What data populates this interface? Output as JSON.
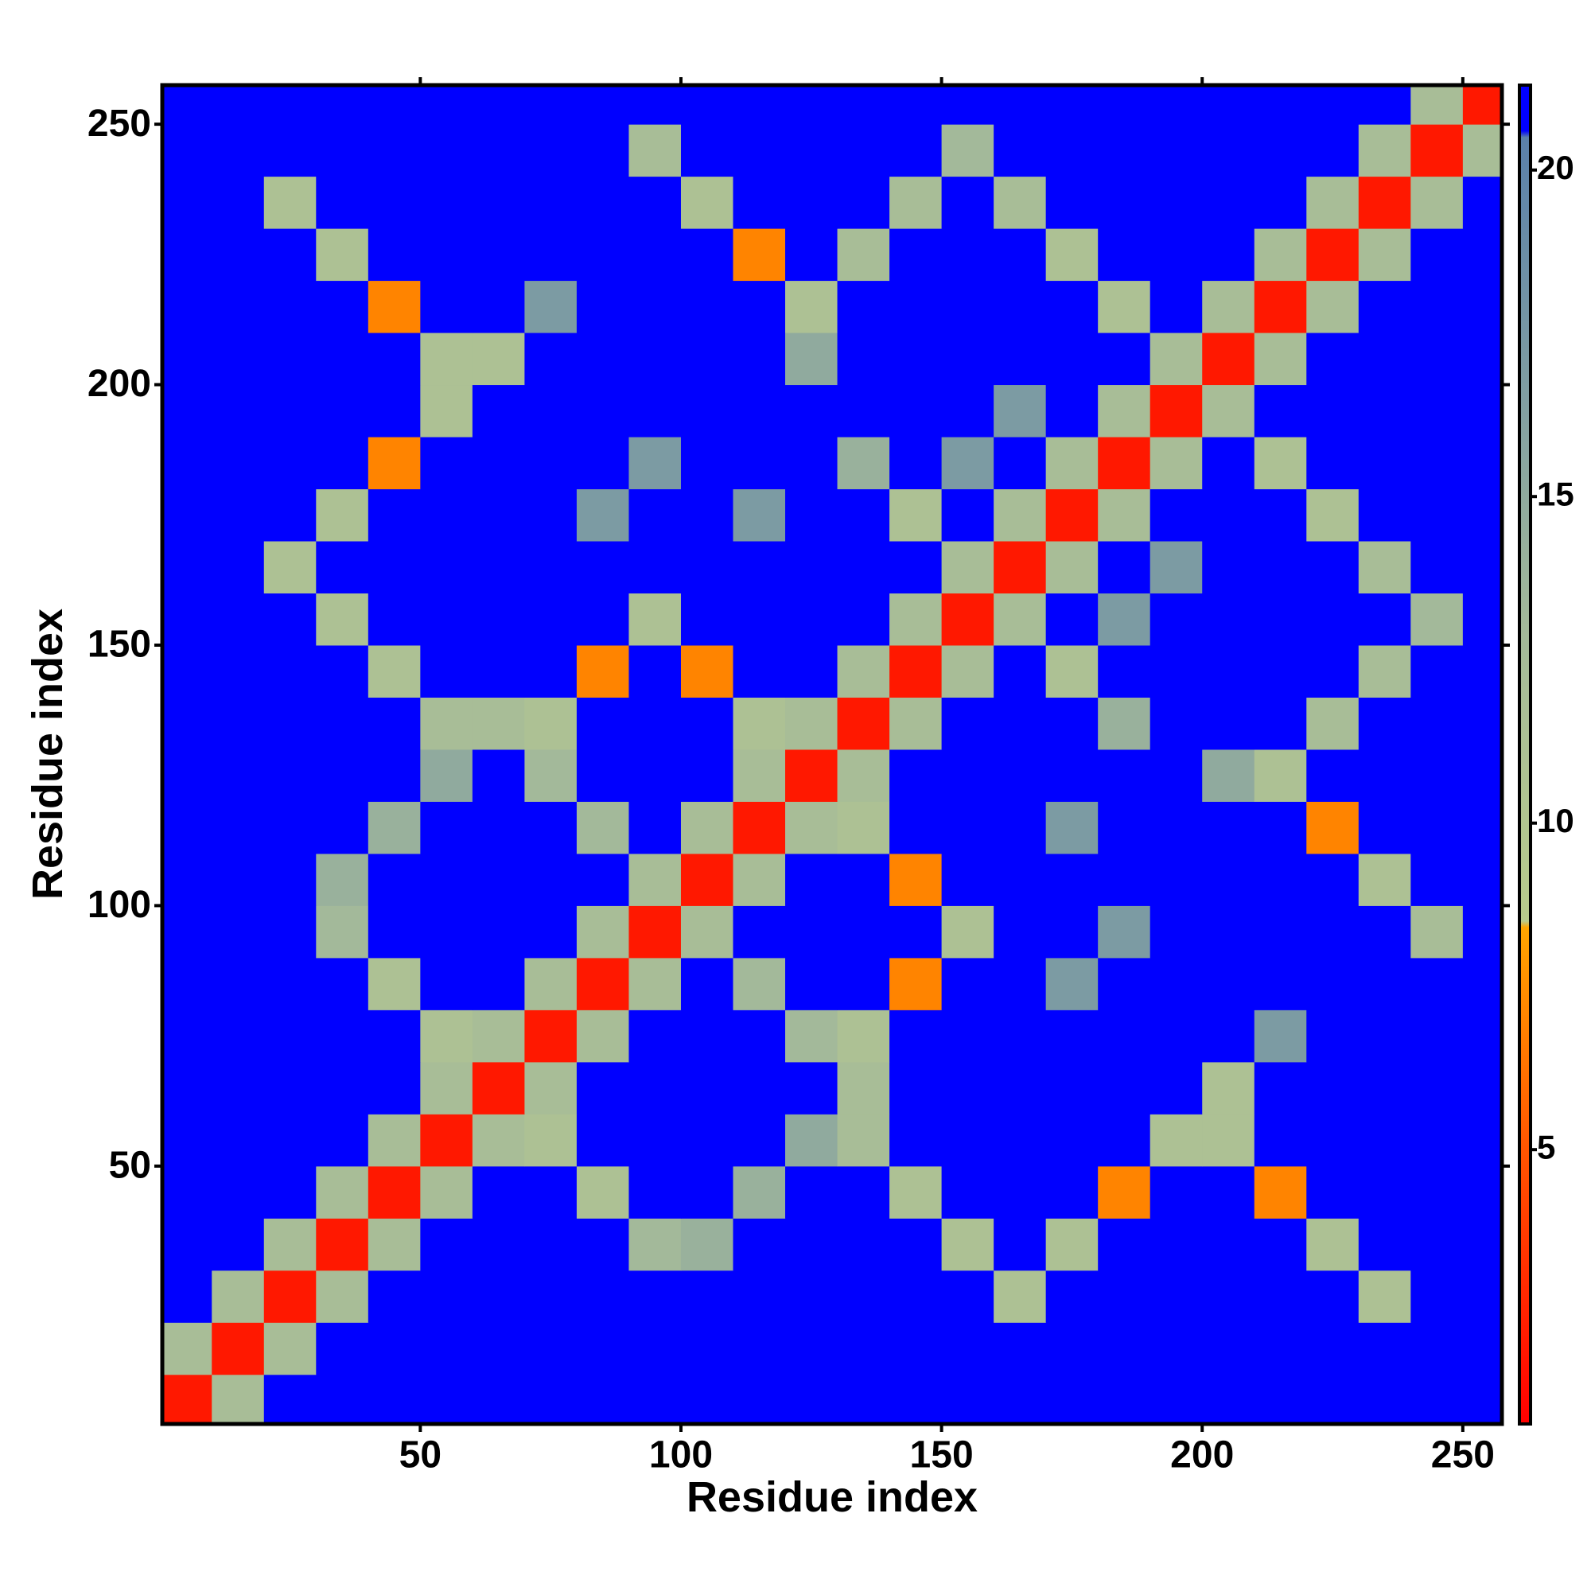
{
  "chart_data": {
    "type": "heatmap",
    "x_label": "Residue index",
    "y_label": "Residue index",
    "x": [
      5,
      15,
      25,
      35,
      45,
      55,
      65,
      75,
      85,
      95,
      105,
      115,
      125,
      135,
      145,
      155,
      165,
      175,
      185,
      195,
      205,
      215,
      225,
      235,
      245,
      255
    ],
    "y": [
      5,
      15,
      25,
      35,
      45,
      55,
      65,
      75,
      85,
      95,
      105,
      115,
      125,
      135,
      145,
      155,
      165,
      175,
      185,
      195,
      205,
      215,
      225,
      235,
      245,
      255
    ],
    "values": [
      [
        2,
        12,
        21,
        21,
        21,
        21,
        21,
        21,
        21,
        21,
        21,
        21,
        21,
        21,
        21,
        21,
        21,
        21,
        21,
        21,
        21,
        21,
        21,
        21,
        21,
        21
      ],
      [
        12,
        2,
        12,
        21,
        21,
        21,
        21,
        21,
        21,
        21,
        21,
        21,
        21,
        21,
        21,
        21,
        21,
        21,
        21,
        21,
        21,
        21,
        21,
        21,
        21,
        21
      ],
      [
        21,
        12,
        2,
        12,
        21,
        21,
        21,
        21,
        21,
        21,
        21,
        21,
        21,
        21,
        21,
        21,
        11,
        21,
        21,
        21,
        21,
        21,
        21,
        11,
        21,
        21
      ],
      [
        21,
        21,
        12,
        2,
        12,
        21,
        21,
        21,
        21,
        13,
        14,
        21,
        21,
        21,
        21,
        11,
        21,
        11,
        21,
        21,
        21,
        21,
        11,
        21,
        21,
        21
      ],
      [
        21,
        21,
        21,
        12,
        2,
        12,
        21,
        21,
        11,
        21,
        21,
        14,
        21,
        21,
        11,
        21,
        21,
        21,
        7,
        21,
        21,
        7,
        21,
        21,
        21,
        21
      ],
      [
        21,
        21,
        21,
        21,
        12,
        2,
        12,
        11,
        21,
        21,
        21,
        21,
        15,
        12,
        21,
        21,
        21,
        21,
        21,
        11,
        11,
        21,
        21,
        21,
        21,
        21
      ],
      [
        21,
        21,
        21,
        21,
        21,
        12,
        2,
        12,
        21,
        21,
        21,
        21,
        21,
        12,
        21,
        21,
        21,
        21,
        21,
        21,
        11,
        21,
        21,
        21,
        21,
        21
      ],
      [
        21,
        21,
        21,
        21,
        21,
        11,
        12,
        2,
        12,
        21,
        21,
        21,
        13,
        11,
        21,
        21,
        21,
        21,
        21,
        21,
        21,
        17,
        21,
        21,
        21,
        21
      ],
      [
        21,
        21,
        21,
        21,
        11,
        21,
        21,
        12,
        2,
        12,
        21,
        13,
        21,
        21,
        7,
        21,
        21,
        17,
        21,
        21,
        21,
        21,
        21,
        21,
        21,
        21
      ],
      [
        21,
        21,
        21,
        13,
        21,
        21,
        21,
        21,
        12,
        2,
        12,
        21,
        21,
        21,
        21,
        11,
        21,
        21,
        17,
        21,
        21,
        21,
        21,
        21,
        12,
        21
      ],
      [
        21,
        21,
        21,
        14,
        21,
        21,
        21,
        21,
        21,
        12,
        2,
        12,
        21,
        21,
        7,
        21,
        21,
        21,
        21,
        21,
        21,
        21,
        21,
        11,
        21,
        21
      ],
      [
        21,
        21,
        21,
        21,
        14,
        21,
        21,
        21,
        13,
        21,
        12,
        2,
        12,
        11,
        21,
        21,
        21,
        17,
        21,
        21,
        21,
        21,
        7,
        21,
        21,
        21
      ],
      [
        21,
        21,
        21,
        21,
        21,
        15,
        21,
        13,
        21,
        21,
        21,
        12,
        2,
        12,
        21,
        21,
        21,
        21,
        21,
        21,
        15,
        11,
        21,
        21,
        21,
        21
      ],
      [
        21,
        21,
        21,
        21,
        21,
        12,
        12,
        11,
        21,
        21,
        21,
        11,
        12,
        2,
        12,
        21,
        21,
        21,
        14,
        21,
        21,
        21,
        12,
        21,
        21,
        21
      ],
      [
        21,
        21,
        21,
        21,
        11,
        21,
        21,
        21,
        7,
        21,
        7,
        21,
        21,
        12,
        2,
        12,
        21,
        11,
        21,
        21,
        21,
        21,
        21,
        12,
        21,
        21
      ],
      [
        21,
        21,
        21,
        11,
        21,
        21,
        21,
        21,
        21,
        11,
        21,
        21,
        21,
        21,
        12,
        2,
        12,
        21,
        17,
        21,
        21,
        21,
        21,
        21,
        13,
        21
      ],
      [
        21,
        21,
        11,
        21,
        21,
        21,
        21,
        21,
        21,
        21,
        21,
        21,
        21,
        21,
        21,
        12,
        2,
        12,
        21,
        17,
        21,
        21,
        21,
        12,
        21,
        21
      ],
      [
        21,
        21,
        21,
        11,
        21,
        21,
        21,
        21,
        17,
        21,
        21,
        17,
        21,
        21,
        11,
        21,
        12,
        2,
        12,
        21,
        21,
        21,
        11,
        21,
        21,
        21
      ],
      [
        21,
        21,
        21,
        21,
        7,
        21,
        21,
        21,
        21,
        17,
        21,
        21,
        21,
        14,
        21,
        17,
        21,
        12,
        2,
        12,
        21,
        11,
        21,
        21,
        21,
        21
      ],
      [
        21,
        21,
        21,
        21,
        21,
        11,
        21,
        21,
        21,
        21,
        21,
        21,
        21,
        21,
        21,
        21,
        17,
        21,
        12,
        2,
        12,
        21,
        21,
        21,
        21,
        21
      ],
      [
        21,
        21,
        21,
        21,
        21,
        11,
        11,
        21,
        21,
        21,
        21,
        21,
        15,
        21,
        21,
        21,
        21,
        21,
        21,
        12,
        2,
        12,
        21,
        21,
        21,
        21
      ],
      [
        21,
        21,
        21,
        21,
        7,
        21,
        21,
        17,
        21,
        21,
        21,
        21,
        11,
        21,
        21,
        21,
        21,
        21,
        11,
        21,
        12,
        2,
        12,
        21,
        21,
        21
      ],
      [
        21,
        21,
        21,
        11,
        21,
        21,
        21,
        21,
        21,
        21,
        21,
        7,
        21,
        12,
        21,
        21,
        21,
        11,
        21,
        21,
        21,
        12,
        2,
        12,
        21,
        21
      ],
      [
        21,
        21,
        11,
        21,
        21,
        21,
        21,
        21,
        21,
        21,
        11,
        21,
        21,
        21,
        12,
        21,
        12,
        21,
        21,
        21,
        21,
        21,
        12,
        2,
        12,
        21
      ],
      [
        21,
        21,
        21,
        21,
        21,
        21,
        21,
        21,
        21,
        12,
        21,
        21,
        21,
        21,
        21,
        13,
        21,
        21,
        21,
        21,
        21,
        21,
        21,
        12,
        2,
        12
      ],
      [
        21,
        21,
        21,
        21,
        21,
        21,
        21,
        21,
        21,
        21,
        21,
        21,
        21,
        21,
        21,
        21,
        21,
        21,
        21,
        21,
        21,
        21,
        21,
        21,
        12,
        2
      ]
    ],
    "xlim": [
      0.5,
      257.5
    ],
    "ylim": [
      0.5,
      257.5
    ],
    "xticks": [
      50,
      100,
      150,
      200,
      250
    ],
    "yticks": [
      50,
      100,
      150,
      200,
      250
    ],
    "zlim": [
      0.8,
      21.3
    ],
    "zticks": [
      5,
      10,
      15,
      20
    ],
    "colorscale": [
      [
        0.8,
        "#ff0000"
      ],
      [
        5,
        "#ff5500"
      ],
      [
        8.4,
        "#ffa500"
      ],
      [
        8.5,
        "#b9cb8c"
      ],
      [
        13,
        "#a3b99a"
      ],
      [
        20.5,
        "#5a80aa"
      ],
      [
        20.6,
        "#0000ff"
      ]
    ]
  }
}
